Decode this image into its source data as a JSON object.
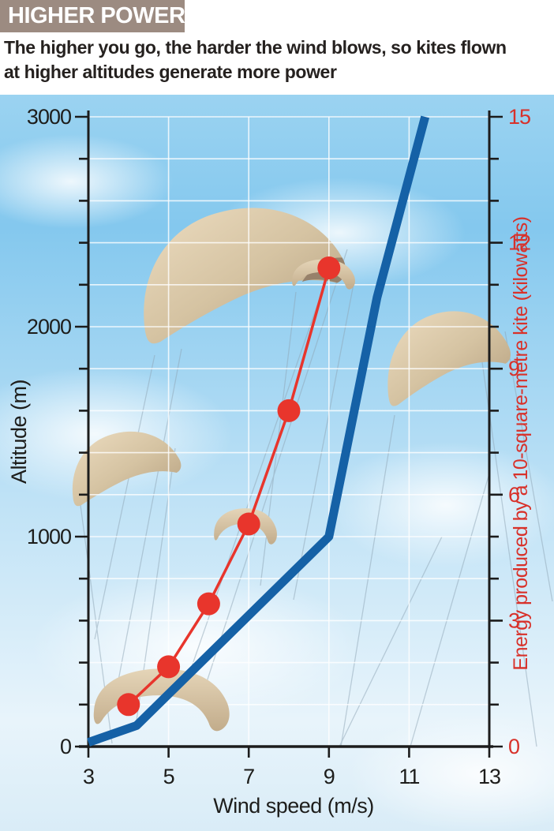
{
  "header": {
    "title": "HIGHER POWER",
    "subtitle_line1": "The higher you go, the harder the wind blows, so kites flown",
    "subtitle_line2": "at higher altitudes generate more power"
  },
  "colors": {
    "banner_bg": "#9c8b81",
    "banner_text": "#ffffff",
    "subtitle_text": "#25211f",
    "axis": "#1c1c1c",
    "grid": "#ffffff",
    "line_blue": "#1561a6",
    "line_red": "#e8352c",
    "energy_axis_red": "#d8312a",
    "kite_tan": "#d5c3a2",
    "sky_top": "#7fc6ec",
    "sky_bottom": "#e8f4fb"
  },
  "chart_data": {
    "type": "line",
    "title": "HIGHER POWER",
    "x_axis": {
      "label": "Wind speed (m/s)",
      "range": [
        3,
        13
      ],
      "ticks": [
        3,
        5,
        7,
        9,
        11,
        13
      ]
    },
    "left_axis": {
      "label": "Altitude (m)",
      "range": [
        0,
        3000
      ],
      "ticks": [
        0,
        1000,
        2000,
        3000
      ],
      "minor_tick_step": 200
    },
    "right_axis": {
      "label": "Energy produced by a 10-square-metre kite (kilowatts)",
      "range": [
        0,
        15
      ],
      "ticks": [
        0,
        3,
        6,
        9,
        12,
        15
      ],
      "minor_tick_step": 1
    },
    "grid": {
      "horizontal_step_kilowatts": 1,
      "vertical_at_wind_speeds": [
        5,
        7,
        9,
        11
      ],
      "color": "#ffffff"
    },
    "series": [
      {
        "name": "altitude-wind-profile",
        "axis": "left",
        "style": "thick-line",
        "color": "#1561a6",
        "units": [
          "m/s",
          "m"
        ],
        "points": [
          [
            3,
            20
          ],
          [
            4.2,
            100
          ],
          [
            9,
            1000
          ],
          [
            10.2,
            2140
          ],
          [
            11.4,
            3000
          ]
        ]
      },
      {
        "name": "kite-energy-output",
        "axis": "right",
        "style": "line-with-dot-markers",
        "color": "#e8352c",
        "units": [
          "m/s",
          "kW"
        ],
        "points": [
          [
            4,
            1.0
          ],
          [
            5,
            1.9
          ],
          [
            6,
            3.4
          ],
          [
            7,
            5.3
          ],
          [
            8,
            8.0
          ],
          [
            9,
            11.4
          ]
        ]
      }
    ],
    "decorations": {
      "kite_illustration_count": 6,
      "legend": "none"
    }
  }
}
